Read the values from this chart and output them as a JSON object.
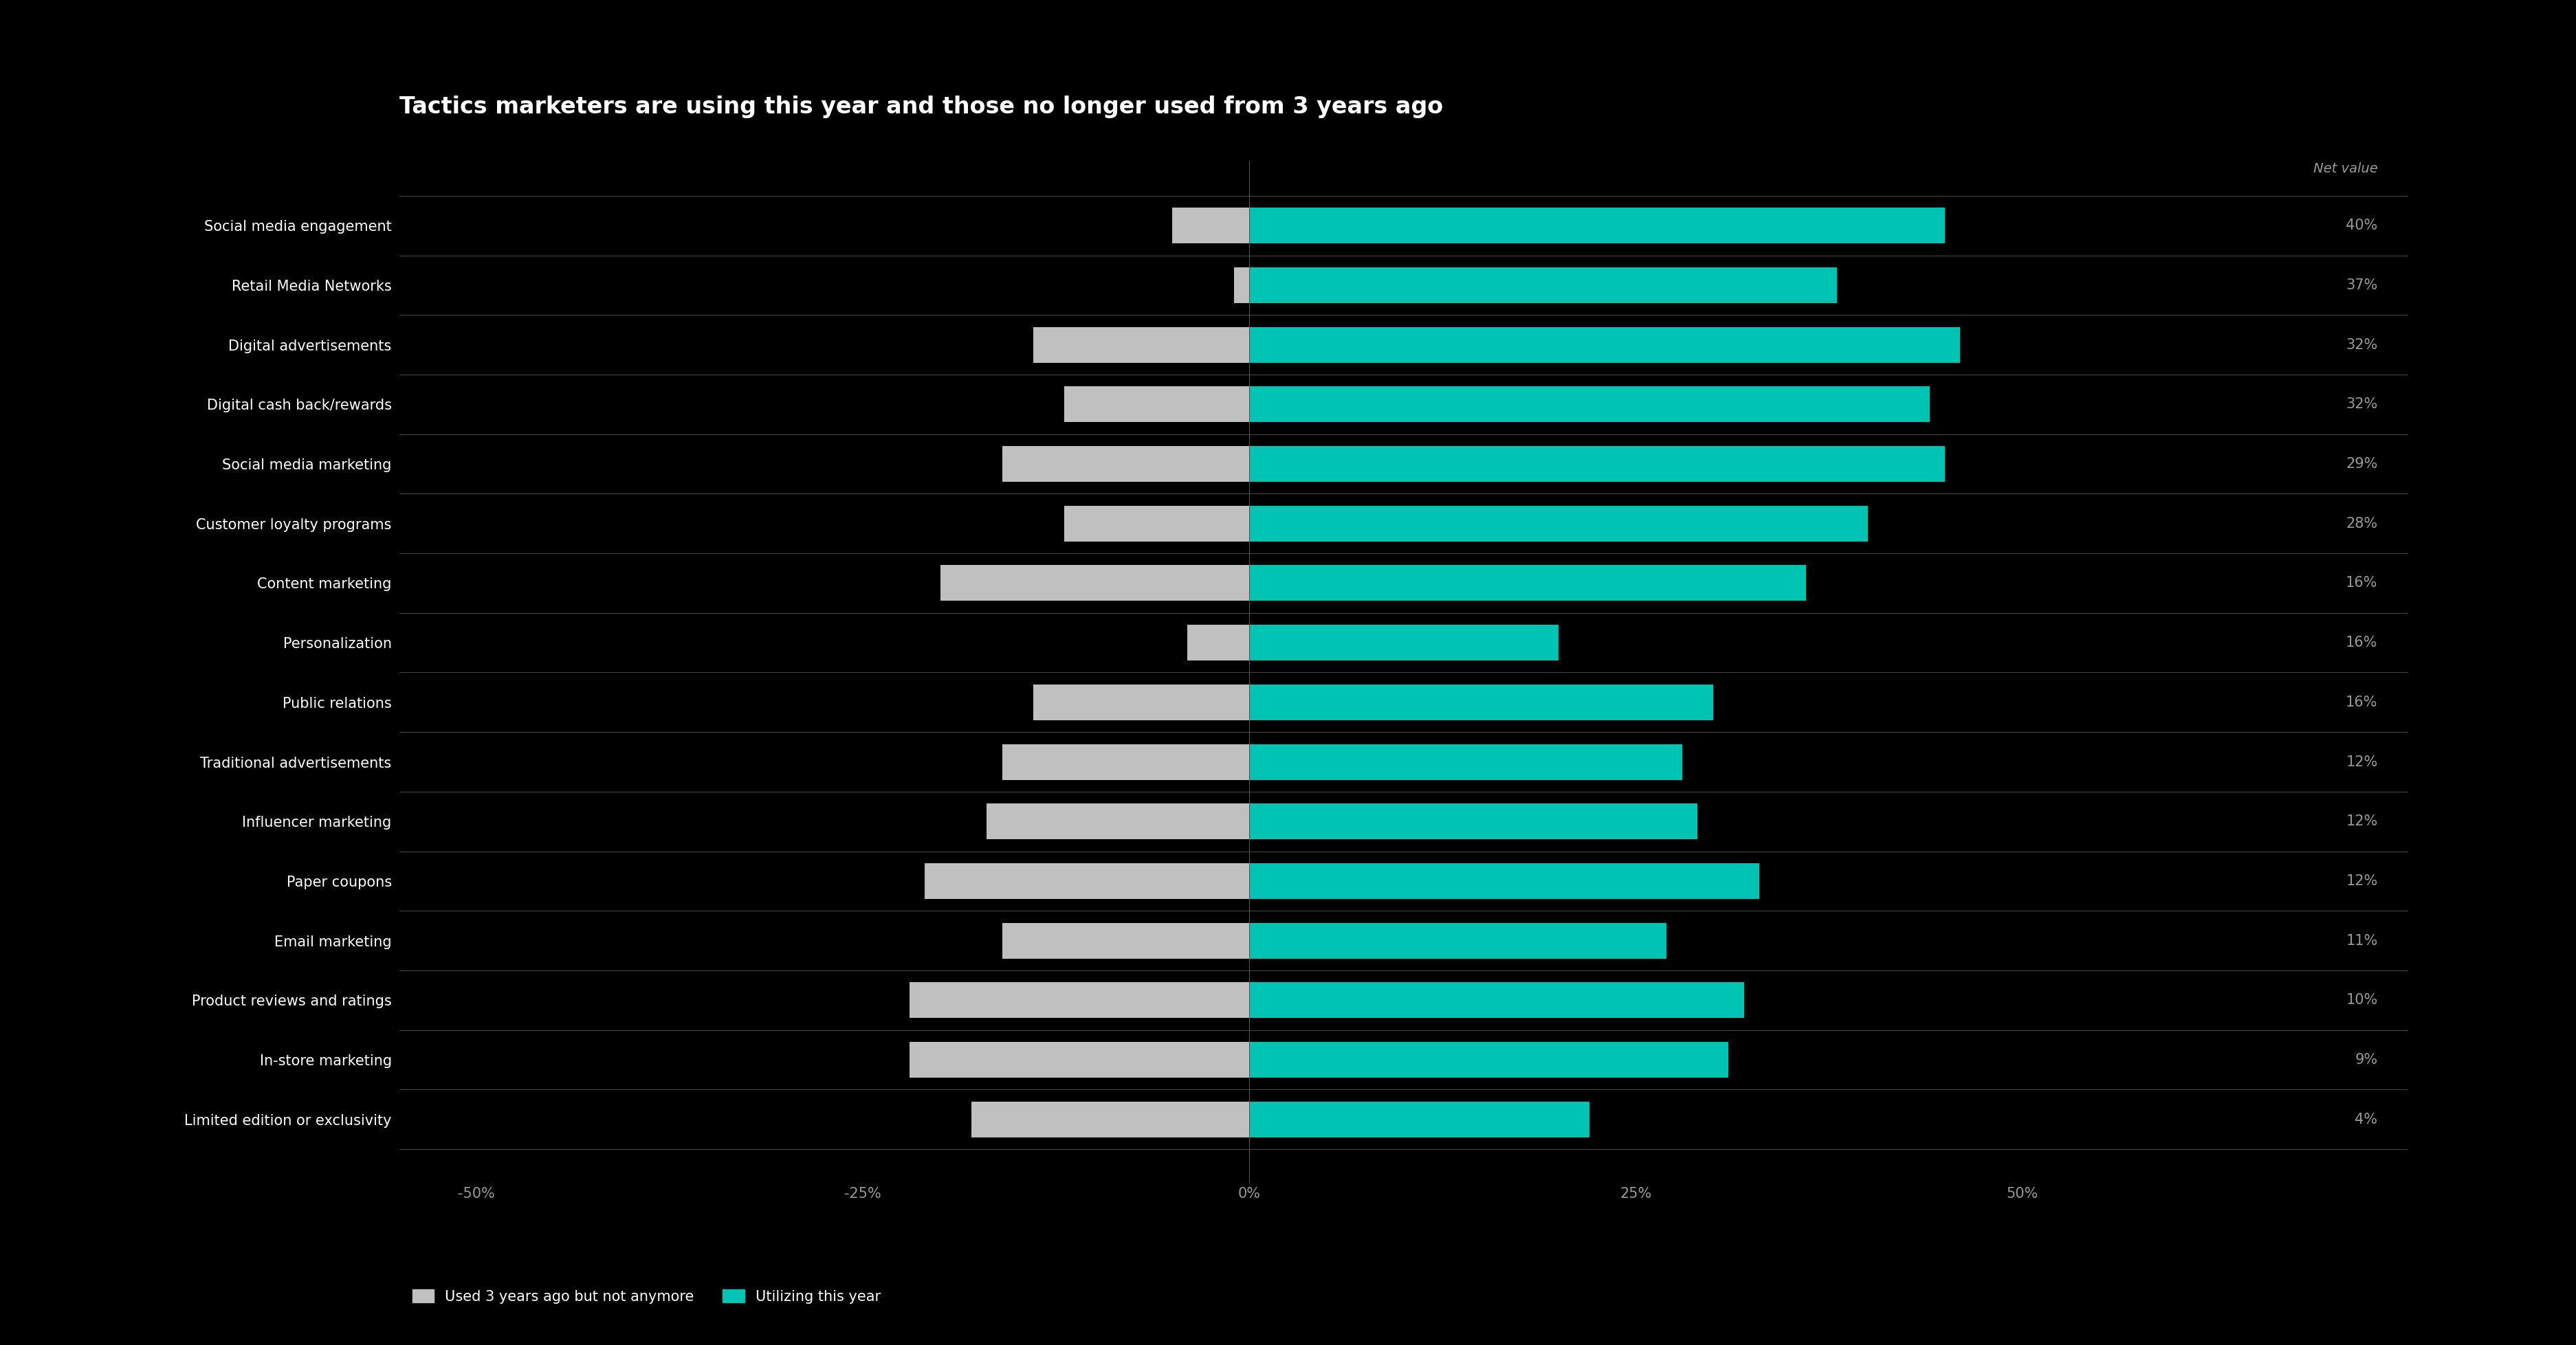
{
  "title": "Tactics marketers are using this year and those no longer used from 3 years ago",
  "categories": [
    "Social media engagement",
    "Retail Media Networks",
    "Digital advertisements",
    "Digital cash back/rewards",
    "Social media marketing",
    "Customer loyalty programs",
    "Content marketing",
    "Personalization",
    "Public relations",
    "Traditional advertisements",
    "Influencer marketing",
    "Paper coupons",
    "Email marketing",
    "Product reviews and ratings",
    "In-store marketing",
    "Limited edition or exclusivity"
  ],
  "net_values": [
    "40%",
    "37%",
    "32%",
    "32%",
    "29%",
    "28%",
    "16%",
    "16%",
    "16%",
    "12%",
    "12%",
    "12%",
    "11%",
    "10%",
    "9%",
    "4%"
  ],
  "current_year": [
    45,
    38,
    46,
    44,
    45,
    40,
    36,
    20,
    30,
    28,
    29,
    33,
    27,
    32,
    31,
    22
  ],
  "three_years_ago": [
    -5,
    -1,
    -14,
    -12,
    -16,
    -12,
    -20,
    -4,
    -14,
    -16,
    -17,
    -21,
    -16,
    -22,
    -22,
    -18
  ],
  "color_current": "#00C4B3",
  "color_past": "#C0C0C0",
  "background_color": "#000000",
  "text_color": "#ffffff",
  "divider_color": "#444444",
  "tick_label_color": "#999999",
  "net_value_color": "#999999",
  "legend_past": "Used 3 years ago but not anymore",
  "legend_current": "Utilizing this year",
  "net_value_label": "Net value",
  "xlim": [
    -55,
    75
  ],
  "xticks": [
    -50,
    -25,
    0,
    25,
    50
  ],
  "xtick_labels": [
    "-50%",
    "-25%",
    "0%",
    "25%",
    "50%"
  ]
}
